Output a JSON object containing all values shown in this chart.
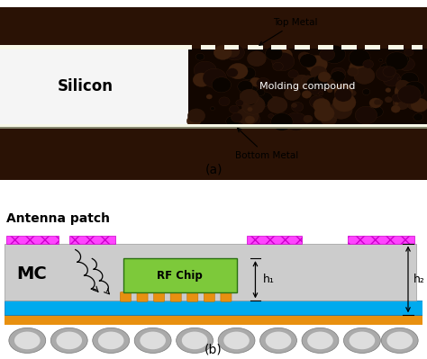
{
  "fig_width": 4.74,
  "fig_height": 3.99,
  "dpi": 100,
  "bg_color": "#ffffff",
  "label_a": "(a)",
  "label_b": "(b)",
  "top_photo": {
    "bg_dark": "#2a1205",
    "bg_lower": "#3a1a08",
    "silicon_color": "#f5f5f5",
    "silicon_label": "Silicon",
    "metal_color": "#f8f8e8",
    "molding_label": "Molding compound",
    "top_metal_label": "Top Metal",
    "bottom_metal_label": "Bottom Metal",
    "bubble_dark": "#1a0a00",
    "bubble_edge": "#2a1008"
  },
  "diagram": {
    "mc_color": "#cccccc",
    "mc_label": "MC",
    "rf_chip_color": "#7dc93a",
    "rf_chip_label": "RF Chip",
    "antenna_color": "#ff44ff",
    "antenna_hatch": "xx",
    "cyan_layer_color": "#00aaee",
    "orange_layer_color": "#e89010",
    "solder_ball_color": "#aaaaaa",
    "solder_ball_edge": "#777777",
    "antenna_patch_label": "Antenna patch",
    "h1_label": "h₁",
    "h2_label": "h₂",
    "bump_color": "#e89010",
    "bump_edge": "#c07000"
  }
}
